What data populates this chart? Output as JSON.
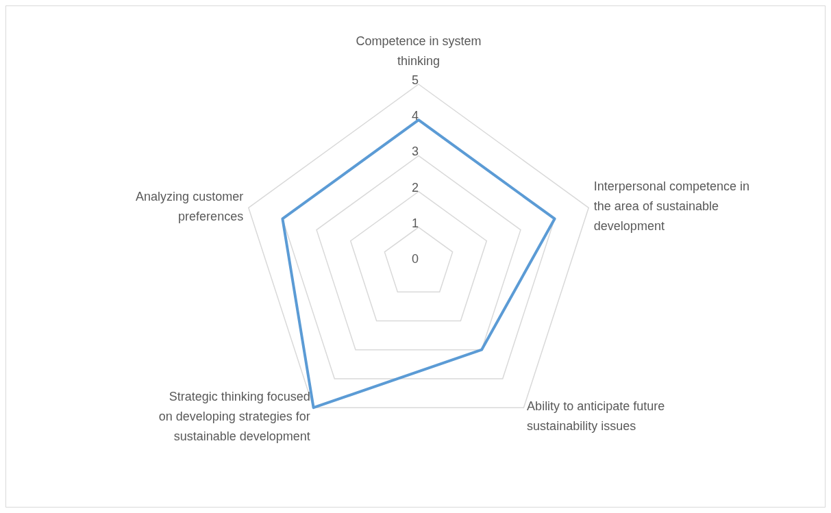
{
  "chart_data": {
    "type": "radar",
    "categories": [
      "Competence in system thinking",
      "Interpersonal competence in the area of sustainable development",
      "Ability to anticipate future sustainability issues",
      "Strategic thinking focused on developing strategies for sustainable development",
      "Analyzing customer preferences"
    ],
    "series": [
      {
        "color": "#5b9bd5",
        "values": [
          4,
          4,
          3,
          5,
          4
        ]
      }
    ],
    "ylim": [
      0,
      5
    ],
    "yticks": [
      0,
      1,
      2,
      3,
      4,
      5
    ],
    "grid": true,
    "marker": "none"
  }
}
